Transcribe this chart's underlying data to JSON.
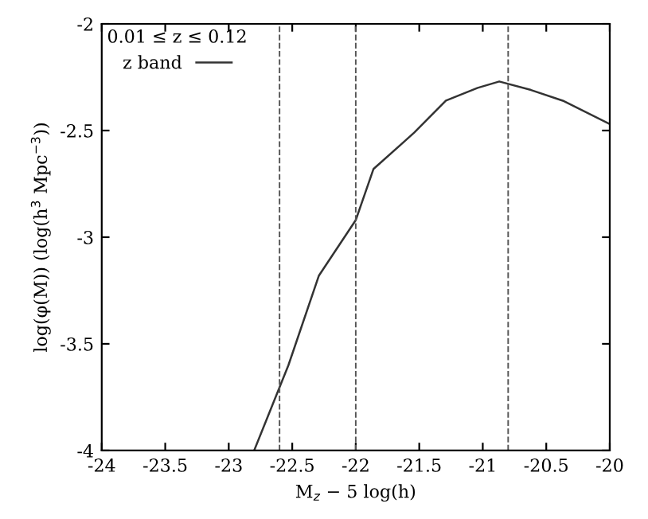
{
  "chart_data": {
    "type": "line",
    "xlabel": "M$_{z}$ − 5 log(h)",
    "ylabel": "log(φ(M)) (log(h$^{3}$ Mpc$^{−3}$))",
    "legend_title": "0.01 ≤ z ≤ 0.12",
    "series": [
      {
        "name": "z band",
        "color": "#333333",
        "x": [
          -22.8,
          -22.53,
          -22.29,
          -22.0,
          -21.86,
          -21.54,
          -21.29,
          -21.04,
          -20.87,
          -20.62,
          -20.37,
          -20.0
        ],
        "values": [
          -4.0,
          -3.6,
          -3.18,
          -2.92,
          -2.68,
          -2.51,
          -2.36,
          -2.3,
          -2.27,
          -2.31,
          -2.36,
          -2.47
        ]
      }
    ],
    "ref_lines": [
      {
        "axis": "x",
        "value": -22.6,
        "label": null,
        "color": "#555555",
        "line_style": "dashed"
      },
      {
        "axis": "x",
        "value": -22.0,
        "label": null,
        "color": "#555555",
        "line_style": "dashed"
      },
      {
        "axis": "x",
        "value": -20.8,
        "label": null,
        "color": "#555555",
        "line_style": "dashed"
      }
    ],
    "xlim": [
      -24,
      -20
    ],
    "ylim": [
      -4,
      -2
    ],
    "xticks": [
      -24,
      -23.5,
      -23,
      -22.5,
      -22,
      -21.5,
      -21,
      -20.5,
      -20
    ],
    "yticks": [
      -4,
      -3.5,
      -3,
      -2.5,
      -2
    ],
    "legend": "top left",
    "grid": false,
    "marker": "none",
    "line_style": "solid"
  }
}
